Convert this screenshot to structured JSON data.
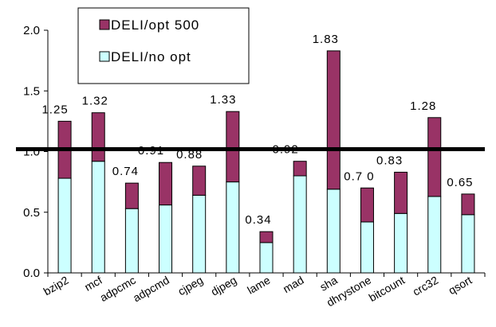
{
  "chart_data": {
    "type": "bar",
    "stacked": true,
    "title": "",
    "xlabel": "",
    "ylabel": "",
    "ylim": [
      0,
      2.0
    ],
    "yticks": [
      "0.0",
      "0.5",
      "1.0",
      "1.5",
      "2.0"
    ],
    "grid": false,
    "legend_position": "top-left",
    "reference_line": 1.02,
    "categories": [
      "bzip2",
      "mcf",
      "adpcmc",
      "adpcmd",
      "cjpeg",
      "djpeg",
      "lame",
      "mad",
      "sha",
      "dhrystone",
      "bitcount",
      "crc32",
      "qsort"
    ],
    "series": [
      {
        "name": "DELI/no opt",
        "color": "#ccffff",
        "values": [
          0.78,
          0.92,
          0.53,
          0.56,
          0.64,
          0.75,
          0.25,
          0.8,
          0.69,
          0.42,
          0.49,
          0.63,
          0.48
        ]
      },
      {
        "name": "DELI/opt 500",
        "color": "#993366",
        "values": [
          0.47,
          0.4,
          0.21,
          0.35,
          0.24,
          0.58,
          0.09,
          0.12,
          1.14,
          0.28,
          0.34,
          0.65,
          0.17
        ]
      }
    ],
    "totals": [
      1.25,
      1.32,
      0.74,
      0.91,
      0.88,
      1.33,
      0.34,
      0.92,
      1.83,
      0.7,
      0.83,
      1.28,
      0.65
    ],
    "total_labels": [
      "1.25",
      "1.32",
      "0.74",
      "0.91",
      "0.88",
      "1.33",
      "0.34",
      "0.92",
      "1.83",
      "0.7 0",
      "0.83",
      "1.28",
      "0.65"
    ]
  }
}
